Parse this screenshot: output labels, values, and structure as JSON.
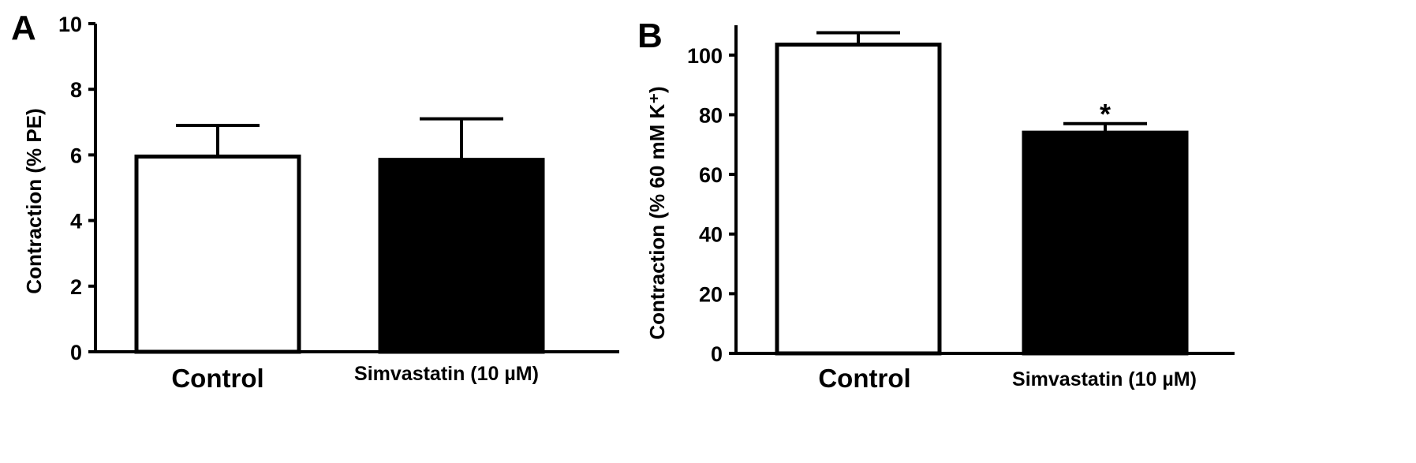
{
  "chart_data": [
    {
      "type": "bar",
      "panel_label": "A",
      "categories": [
        "Control",
        "Simvastatin (10 µM)"
      ],
      "values": [
        5.95,
        5.85
      ],
      "errors": [
        0.95,
        1.25
      ],
      "bar_colors": [
        "#ffffff",
        "#000000"
      ],
      "ylabel": "Contraction  (% PE)",
      "xlabel": "",
      "ylim": [
        0,
        10
      ],
      "yticks": [
        0,
        2,
        4,
        6,
        8,
        10
      ],
      "annotations": []
    },
    {
      "type": "bar",
      "panel_label": "B",
      "categories": [
        "Control",
        "Simvastatin (10 µM)"
      ],
      "values": [
        103.5,
        74
      ],
      "errors": [
        4,
        3
      ],
      "bar_colors": [
        "#ffffff",
        "#000000"
      ],
      "ylabel": "Contraction  (% 60 mM K⁺)",
      "xlabel": "",
      "ylim": [
        0,
        110
      ],
      "yticks": [
        0,
        20,
        40,
        60,
        80,
        100
      ],
      "annotations": [
        "*"
      ]
    }
  ]
}
